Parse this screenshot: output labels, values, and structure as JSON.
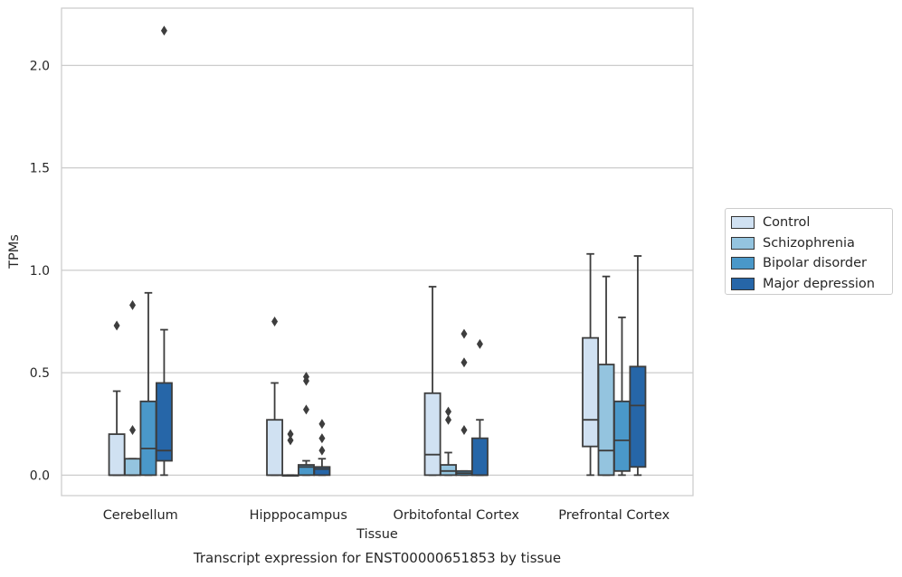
{
  "chart_data": {
    "type": "box",
    "ylabel": "TPMs",
    "xlabel": "Tissue",
    "caption": "Transcript expression for ENST00000651853 by tissue",
    "ylim": [
      -0.1,
      2.28
    ],
    "yticks": [
      "0.0",
      "0.5",
      "1.0",
      "1.5",
      "2.0"
    ],
    "grid": "horizontal",
    "legend_position": "center-right",
    "categories": [
      "Cerebellum",
      "Hipppocampus",
      "Orbitofontal Cortex",
      "Prefrontal Cortex"
    ],
    "series": [
      {
        "name": "Control",
        "color": "#d0e1f2",
        "boxes": [
          {
            "whislo": 0,
            "q1": 0,
            "med": 0,
            "q3": 0.2,
            "whishi": 0.41,
            "fliers": [
              0.73
            ]
          },
          {
            "whislo": 0,
            "q1": 0,
            "med": 0,
            "q3": 0.27,
            "whishi": 0.45,
            "fliers": [
              0.75
            ]
          },
          {
            "whislo": 0,
            "q1": 0,
            "med": 0.1,
            "q3": 0.4,
            "whishi": 0.92,
            "fliers": []
          },
          {
            "whislo": 0,
            "q1": 0.14,
            "med": 0.27,
            "q3": 0.67,
            "whishi": 1.08,
            "fliers": []
          }
        ]
      },
      {
        "name": "Schizophrenia",
        "color": "#94c4df",
        "boxes": [
          {
            "whislo": 0,
            "q1": 0,
            "med": 0,
            "q3": 0.08,
            "whishi": 0.08,
            "fliers": [
              0.22,
              0.83
            ]
          },
          {
            "whislo": 0,
            "q1": 0,
            "med": 0,
            "q3": 0,
            "whishi": 0,
            "fliers": [
              0.17,
              0.2
            ]
          },
          {
            "whislo": 0,
            "q1": 0,
            "med": 0.02,
            "q3": 0.05,
            "whishi": 0.11,
            "fliers": [
              0.27,
              0.31
            ]
          },
          {
            "whislo": 0,
            "q1": 0,
            "med": 0.12,
            "q3": 0.54,
            "whishi": 0.97,
            "fliers": []
          }
        ]
      },
      {
        "name": "Bipolar disorder",
        "color": "#4a98c9",
        "boxes": [
          {
            "whislo": 0,
            "q1": 0,
            "med": 0.13,
            "q3": 0.36,
            "whishi": 0.89,
            "fliers": []
          },
          {
            "whislo": 0,
            "q1": 0,
            "med": 0.04,
            "q3": 0.05,
            "whishi": 0.07,
            "fliers": [
              0.32,
              0.46,
              0.48
            ]
          },
          {
            "whislo": 0,
            "q1": 0,
            "med": 0.01,
            "q3": 0.02,
            "whishi": 0.02,
            "fliers": [
              0.22,
              0.55,
              0.69
            ]
          },
          {
            "whislo": 0,
            "q1": 0.02,
            "med": 0.17,
            "q3": 0.36,
            "whishi": 0.77,
            "fliers": []
          }
        ]
      },
      {
        "name": "Major depression",
        "color": "#2666a8",
        "boxes": [
          {
            "whislo": 0,
            "q1": 0.07,
            "med": 0.12,
            "q3": 0.45,
            "whishi": 0.71,
            "fliers": [
              2.17
            ]
          },
          {
            "whislo": 0,
            "q1": 0,
            "med": 0.03,
            "q3": 0.04,
            "whishi": 0.08,
            "fliers": [
              0.12,
              0.18,
              0.25
            ]
          },
          {
            "whislo": 0,
            "q1": 0,
            "med": 0,
            "q3": 0.18,
            "whishi": 0.27,
            "fliers": [
              0.64
            ]
          },
          {
            "whislo": 0,
            "q1": 0.04,
            "med": 0.34,
            "q3": 0.53,
            "whishi": 1.07,
            "fliers": []
          }
        ]
      }
    ]
  }
}
